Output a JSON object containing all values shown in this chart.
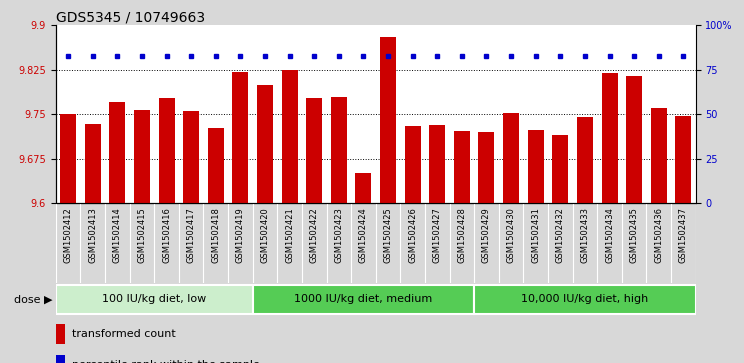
{
  "title": "GDS5345 / 10749663",
  "samples": [
    "GSM1502412",
    "GSM1502413",
    "GSM1502414",
    "GSM1502415",
    "GSM1502416",
    "GSM1502417",
    "GSM1502418",
    "GSM1502419",
    "GSM1502420",
    "GSM1502421",
    "GSM1502422",
    "GSM1502423",
    "GSM1502424",
    "GSM1502425",
    "GSM1502426",
    "GSM1502427",
    "GSM1502428",
    "GSM1502429",
    "GSM1502430",
    "GSM1502431",
    "GSM1502432",
    "GSM1502433",
    "GSM1502434",
    "GSM1502435",
    "GSM1502436",
    "GSM1502437"
  ],
  "bar_values": [
    9.75,
    9.733,
    9.77,
    9.757,
    9.778,
    9.755,
    9.727,
    9.822,
    9.8,
    9.825,
    9.778,
    9.78,
    9.651,
    9.88,
    9.73,
    9.732,
    9.722,
    9.72,
    9.752,
    9.724,
    9.715,
    9.745,
    9.82,
    9.814,
    9.76,
    9.748
  ],
  "percentile_values": [
    83,
    83,
    83,
    83,
    83,
    83,
    83,
    83,
    83,
    83,
    83,
    83,
    83,
    83,
    83,
    83,
    83,
    83,
    83,
    83,
    83,
    83,
    83,
    83,
    83,
    83
  ],
  "bar_color": "#cc0000",
  "dot_color": "#0000cc",
  "ylim_left": [
    9.6,
    9.9
  ],
  "ylim_right": [
    0,
    100
  ],
  "yticks_left": [
    9.6,
    9.675,
    9.75,
    9.825,
    9.9
  ],
  "yticks_right": [
    0,
    25,
    50,
    75,
    100
  ],
  "ytick_labels_right": [
    "0",
    "25",
    "50",
    "75",
    "100%"
  ],
  "hlines": [
    9.675,
    9.75,
    9.825
  ],
  "group_configs": [
    {
      "label": "100 IU/kg diet, low",
      "start": 0,
      "end": 8,
      "color": "#cceecc"
    },
    {
      "label": "1000 IU/kg diet, medium",
      "start": 8,
      "end": 17,
      "color": "#55cc55"
    },
    {
      "label": "10,000 IU/kg diet, high",
      "start": 17,
      "end": 26,
      "color": "#55cc55"
    }
  ],
  "bg_color": "#d8d8d8",
  "plot_bg": "#ffffff",
  "xtick_bg": "#d8d8d8",
  "title_fontsize": 10,
  "tick_fontsize": 7,
  "xtick_fontsize": 6,
  "group_fontsize": 8
}
